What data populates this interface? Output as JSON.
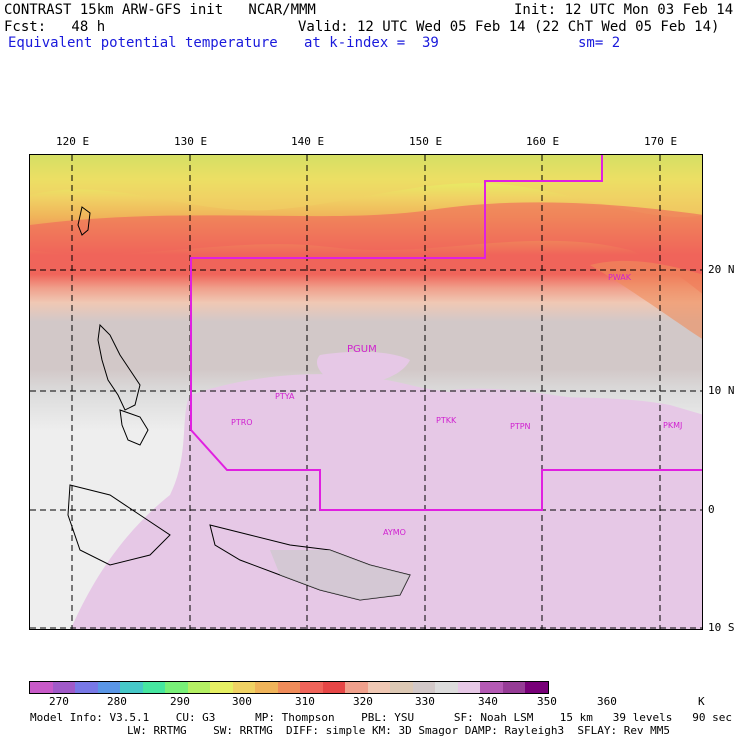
{
  "header": {
    "line1_left": "CONTRAST 15km ARW-GFS init   NCAR/MMM",
    "line1_right": "Init: 12 UTC Mon 03 Feb 14",
    "line2_left": "Fcst:   48 h",
    "line2_right": "Valid: 12 UTC Wed 05 Feb 14 (22 ChT Wed 05 Feb 14)",
    "field_name": "Equivalent potential temperature",
    "level": "at k-index =  39",
    "smoothing": "sm= 2"
  },
  "map": {
    "lon_labels": [
      "120 E",
      "130 E",
      "140 E",
      "150 E",
      "160 E",
      "170 E"
    ],
    "lat_labels": [
      "20 N",
      "10 N",
      "0",
      "10 S"
    ],
    "stations": [
      {
        "id": "PGUM",
        "lon": 144.8,
        "lat": 13.5
      },
      {
        "id": "PTYA",
        "lon": 138.1,
        "lat": 9.5
      },
      {
        "id": "PTRO",
        "lon": 134.5,
        "lat": 7.3
      },
      {
        "id": "PTKK",
        "lon": 151.8,
        "lat": 7.4
      },
      {
        "id": "PTPN",
        "lon": 158.2,
        "lat": 6.9
      },
      {
        "id": "PKMJ",
        "lon": 171.3,
        "lat": 7.1
      },
      {
        "id": "PWAK",
        "lon": 166.6,
        "lat": 19.3
      },
      {
        "id": "AYMO",
        "lon": 147.2,
        "lat": -2.1
      }
    ]
  },
  "colorbar": {
    "colors": [
      "#c85ac8",
      "#a05ac8",
      "#7878e6",
      "#5a96e6",
      "#46c8c8",
      "#46e6a0",
      "#78f078",
      "#b4f064",
      "#e6f064",
      "#f0d264",
      "#f0b45a",
      "#f08c5a",
      "#f0645a",
      "#e64646",
      "#f0a08c",
      "#f0c8b4",
      "#dcc8b4",
      "#d2c8c8",
      "#dcdcdc",
      "#e6c8e6",
      "#b45ab4",
      "#963c96",
      "#780078"
    ],
    "labels": [
      "270",
      "280",
      "290",
      "300",
      "310",
      "320",
      "330",
      "340",
      "350",
      "360"
    ],
    "unit": "K"
  },
  "model_info": {
    "line1": "Model Info: V3.5.1    CU: G3      MP: Thompson    PBL: YSU      SF: Noah LSM    15 km   39 levels   90 sec",
    "line2": "LW: RRTMG    SW: RRTMG  DIFF: simple KM: 3D Smagor DAMP: Rayleigh3  SFLAY: Rev MM5"
  }
}
